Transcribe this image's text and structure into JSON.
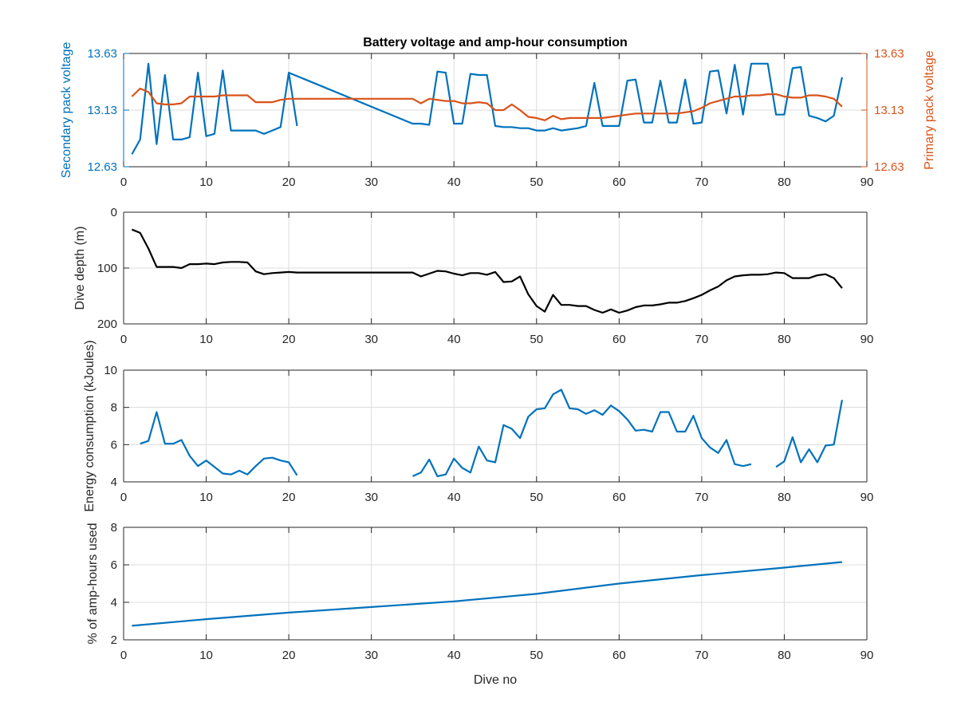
{
  "figure": {
    "xlabel": "Dive no"
  },
  "colors": {
    "blue": "#0072BD",
    "orange": "#D95319",
    "black": "#000000",
    "grid": "#dcdcdc",
    "axis": "#262626"
  },
  "chart_data": [
    {
      "id": "voltage",
      "type": "line",
      "title": "Battery voltage and amp-hour consumption",
      "xlabel": "",
      "ylabel": "Secondary pack voltage",
      "ylabel_right": "Primary pack voltage",
      "xlim": [
        0,
        90
      ],
      "xticks": [
        0,
        10,
        20,
        30,
        40,
        50,
        60,
        70,
        80,
        90
      ],
      "ylim": [
        12.63,
        13.63
      ],
      "yticks": [
        12.63,
        13.13,
        13.63
      ],
      "ytick_labels": [
        "12.63",
        "13.13",
        "13.63"
      ],
      "ylim_right": [
        12.63,
        13.63
      ],
      "yticks_right": [
        12.63,
        13.13,
        13.63
      ],
      "ytick_labels_right": [
        "12.63",
        "13.13",
        "13.63"
      ],
      "grid": true,
      "series": [
        {
          "axis": "left",
          "color": "blue",
          "x": [
            1,
            2,
            3,
            4,
            5,
            6,
            7,
            8,
            9,
            10,
            11,
            12,
            13,
            14,
            15,
            16,
            17,
            18,
            19,
            20,
            21
          ],
          "y": [
            12.74,
            12.87,
            13.54,
            12.83,
            13.44,
            12.87,
            12.87,
            12.89,
            13.46,
            12.9,
            12.92,
            13.48,
            12.95,
            12.95,
            12.95,
            12.95,
            12.92,
            12.95,
            12.98,
            13.46,
            12.99
          ]
        },
        {
          "axis": "left",
          "color": "blue",
          "x": [
            20,
            35,
            36,
            37,
            38,
            39,
            40,
            41,
            42,
            43,
            44,
            45,
            46,
            47,
            48,
            49,
            50,
            51,
            52,
            53,
            54,
            55,
            56,
            57,
            58,
            59,
            60,
            61,
            62,
            63,
            64,
            65,
            66,
            67,
            68,
            69,
            70,
            71,
            72,
            73,
            74,
            75,
            76,
            77,
            78,
            79,
            80,
            81,
            82,
            83,
            84,
            85,
            86,
            87
          ],
          "y": [
            13.46,
            13.01,
            13.01,
            13.0,
            13.47,
            13.46,
            13.01,
            13.01,
            13.45,
            13.44,
            13.44,
            12.99,
            12.98,
            12.98,
            12.97,
            12.97,
            12.95,
            12.95,
            12.97,
            12.95,
            12.96,
            12.97,
            12.99,
            13.37,
            12.99,
            12.99,
            12.99,
            13.39,
            13.4,
            13.02,
            13.02,
            13.39,
            13.02,
            13.02,
            13.4,
            13.01,
            13.02,
            13.47,
            13.48,
            13.1,
            13.53,
            13.09,
            13.54,
            13.54,
            13.54,
            13.09,
            13.09,
            13.5,
            13.51,
            13.08,
            13.06,
            13.03,
            13.08,
            13.42
          ]
        },
        {
          "axis": "right",
          "color": "orange",
          "x": [
            1,
            2,
            3,
            4,
            5,
            6,
            7,
            8,
            9,
            10,
            11,
            12,
            13,
            14,
            15,
            16,
            17,
            18,
            19,
            20,
            21,
            22,
            23,
            24,
            25,
            26,
            27,
            28,
            29,
            30,
            31,
            32,
            33,
            34,
            35,
            36,
            37,
            38,
            39,
            40,
            41,
            42,
            43,
            44,
            45,
            46,
            47,
            48,
            49,
            50,
            51,
            52,
            53,
            54,
            55,
            56,
            57,
            58,
            59,
            60,
            61,
            62,
            63,
            64,
            65,
            66,
            67,
            68,
            69,
            70,
            71,
            72,
            73,
            74,
            75,
            76,
            77,
            78,
            79,
            80,
            81,
            82,
            83,
            84,
            85,
            86,
            87
          ],
          "y": [
            13.25,
            13.32,
            13.29,
            13.19,
            13.18,
            13.18,
            13.19,
            13.25,
            13.25,
            13.25,
            13.25,
            13.26,
            13.26,
            13.26,
            13.26,
            13.2,
            13.2,
            13.2,
            13.22,
            13.23,
            13.23,
            13.23,
            13.23,
            13.23,
            13.23,
            13.23,
            13.23,
            13.23,
            13.23,
            13.23,
            13.23,
            13.23,
            13.23,
            13.23,
            13.23,
            13.19,
            13.23,
            13.22,
            13.21,
            13.21,
            13.19,
            13.19,
            13.2,
            13.19,
            13.13,
            13.13,
            13.18,
            13.13,
            13.07,
            13.06,
            13.04,
            13.08,
            13.05,
            13.06,
            13.06,
            13.06,
            13.06,
            13.06,
            13.07,
            13.08,
            13.09,
            13.1,
            13.1,
            13.1,
            13.1,
            13.1,
            13.1,
            13.11,
            13.12,
            13.15,
            13.19,
            13.21,
            13.23,
            13.25,
            13.25,
            13.26,
            13.26,
            13.27,
            13.27,
            13.25,
            13.24,
            13.24,
            13.26,
            13.26,
            13.25,
            13.23,
            13.16
          ]
        }
      ]
    },
    {
      "id": "depth",
      "type": "line",
      "title": "",
      "xlabel": "",
      "ylabel": "Dive depth (m)",
      "xlim": [
        0,
        90
      ],
      "xticks": [
        0,
        10,
        20,
        30,
        40,
        50,
        60,
        70,
        80,
        90
      ],
      "ylim": [
        0,
        200
      ],
      "yreverse": true,
      "yticks": [
        0,
        100,
        200
      ],
      "ytick_labels": [
        "0",
        "100",
        "200"
      ],
      "grid": true,
      "series": [
        {
          "color": "black",
          "x": [
            1,
            2,
            3,
            4,
            5,
            6,
            7,
            8,
            9,
            10,
            11,
            12,
            13,
            14,
            15,
            16,
            17,
            18,
            19,
            20,
            21,
            22,
            23,
            24,
            25,
            26,
            27,
            28,
            29,
            30,
            31,
            32,
            33,
            34,
            35,
            36,
            37,
            38,
            39,
            40,
            41,
            42,
            43,
            44,
            45,
            46,
            47,
            48,
            49,
            50,
            51,
            52,
            53,
            54,
            55,
            56,
            57,
            58,
            59,
            60,
            61,
            62,
            63,
            64,
            65,
            66,
            67,
            68,
            69,
            70,
            71,
            72,
            73,
            74,
            75,
            76,
            77,
            78,
            79,
            80,
            81,
            82,
            83,
            84,
            85,
            86,
            87
          ],
          "y": [
            31,
            37,
            65,
            98,
            98,
            98,
            100,
            93,
            93,
            92,
            93,
            90,
            89,
            89,
            90,
            106,
            111,
            109,
            108,
            107,
            108,
            108,
            108,
            108,
            108,
            108,
            108,
            108,
            108,
            108,
            108,
            108,
            108,
            108,
            108,
            115,
            110,
            105,
            106,
            110,
            113,
            109,
            109,
            112,
            107,
            125,
            124,
            115,
            147,
            168,
            178,
            148,
            166,
            166,
            168,
            168,
            175,
            180,
            174,
            180,
            176,
            170,
            167,
            167,
            165,
            162,
            162,
            159,
            154,
            148,
            140,
            133,
            122,
            115,
            113,
            112,
            112,
            111,
            108,
            109,
            118,
            118,
            118,
            113,
            111,
            118,
            136
          ]
        }
      ]
    },
    {
      "id": "energy",
      "type": "line",
      "title": "",
      "xlabel": "",
      "ylabel": "Energy consumption (kJoules)",
      "xlim": [
        0,
        90
      ],
      "xticks": [
        0,
        10,
        20,
        30,
        40,
        50,
        60,
        70,
        80,
        90
      ],
      "ylim": [
        4,
        10
      ],
      "yticks": [
        4,
        6,
        8,
        10
      ],
      "ytick_labels": [
        "4",
        "6",
        "8",
        "10"
      ],
      "grid": true,
      "series": [
        {
          "color": "blue",
          "x": [
            2,
            3,
            4,
            5,
            6,
            7,
            8,
            9,
            10,
            11,
            12,
            13,
            14,
            15,
            16,
            17,
            18,
            19,
            20,
            21
          ],
          "y": [
            6.05,
            6.2,
            7.75,
            6.05,
            6.05,
            6.25,
            5.4,
            4.85,
            5.15,
            4.8,
            4.45,
            4.4,
            4.6,
            4.4,
            4.85,
            5.25,
            5.3,
            5.15,
            5.05,
            4.35
          ]
        },
        {
          "color": "blue",
          "x": [
            35,
            36,
            37,
            38,
            39,
            40,
            41,
            42,
            43,
            44,
            45,
            46,
            47,
            48,
            49,
            50,
            51,
            52,
            53,
            54,
            55,
            56,
            57,
            58,
            59,
            60,
            61,
            62,
            63,
            64,
            65,
            66,
            67,
            68,
            69,
            70,
            71,
            72,
            73,
            74,
            75,
            76
          ],
          "y": [
            4.3,
            4.5,
            5.2,
            4.3,
            4.4,
            5.25,
            4.75,
            4.5,
            5.9,
            5.15,
            5.05,
            7.05,
            6.85,
            6.35,
            7.5,
            7.9,
            7.95,
            8.7,
            8.95,
            7.95,
            7.9,
            7.65,
            7.85,
            7.6,
            8.1,
            7.8,
            7.35,
            6.75,
            6.8,
            6.7,
            7.75,
            7.75,
            6.7,
            6.7,
            7.55,
            6.35,
            5.85,
            5.55,
            6.25,
            4.95,
            4.85,
            4.95
          ]
        },
        {
          "color": "blue",
          "x": [
            79,
            80,
            81,
            82,
            83,
            84,
            85,
            86,
            87
          ],
          "y": [
            4.8,
            5.1,
            6.4,
            5.05,
            5.75,
            5.05,
            5.95,
            6.0,
            8.4
          ]
        }
      ]
    },
    {
      "id": "amphours",
      "type": "line",
      "title": "",
      "xlabel": "Dive no",
      "ylabel": "% of amp-hours used",
      "xlim": [
        0,
        90
      ],
      "xticks": [
        0,
        10,
        20,
        30,
        40,
        50,
        60,
        70,
        80,
        90
      ],
      "ylim": [
        2,
        8
      ],
      "yticks": [
        2,
        4,
        6,
        8
      ],
      "ytick_labels": [
        "2",
        "4",
        "6",
        "8"
      ],
      "grid": true,
      "series": [
        {
          "color": "blue",
          "x": [
            1,
            10,
            20,
            30,
            40,
            50,
            60,
            70,
            80,
            87
          ],
          "y": [
            2.75,
            3.1,
            3.45,
            3.75,
            4.05,
            4.45,
            5.0,
            5.45,
            5.85,
            6.15
          ]
        }
      ]
    }
  ]
}
